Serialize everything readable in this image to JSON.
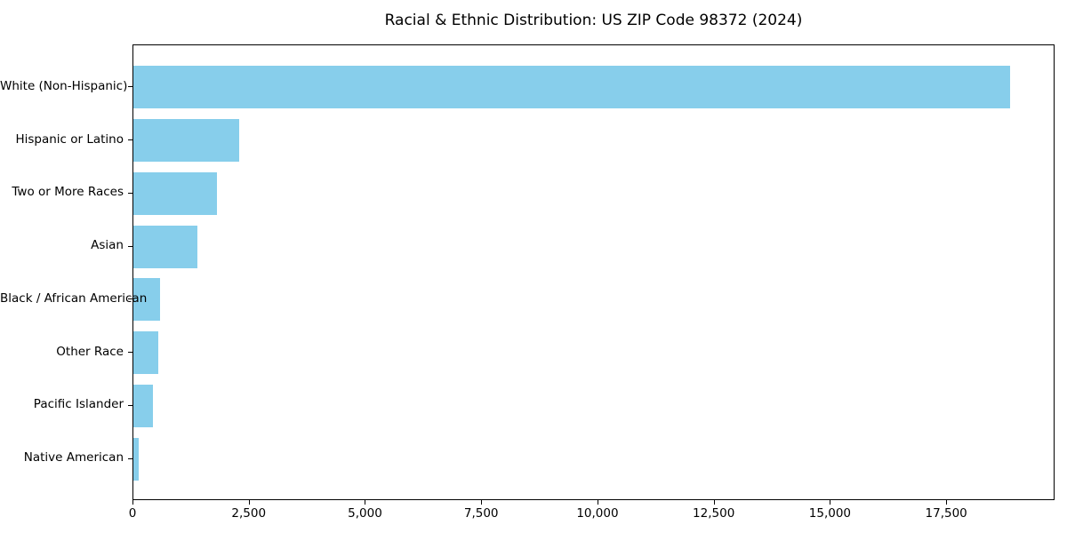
{
  "chart_data": {
    "type": "bar",
    "orientation": "horizontal",
    "title": "Racial & Ethnic Distribution: US ZIP Code 98372 (2024)",
    "categories": [
      "White (Non-Hispanic)",
      "Hispanic or Latino",
      "Two or More Races",
      "Asian",
      "Black / African American",
      "Other Race",
      "Pacific Islander",
      "Native American"
    ],
    "values": [
      18900,
      2280,
      1800,
      1380,
      580,
      540,
      420,
      120
    ],
    "xlabel": "",
    "ylabel": "",
    "xlim": [
      0,
      19830
    ],
    "xticks": {
      "values": [
        0,
        2500,
        5000,
        7500,
        10000,
        12500,
        15000,
        17500
      ],
      "labels": [
        "0",
        "2,500",
        "5,000",
        "7,500",
        "10,000",
        "12,500",
        "15,000",
        "17,500"
      ]
    },
    "bar_color": "#87CEEB",
    "text_color": "#000000",
    "grid": false,
    "legend": null
  }
}
